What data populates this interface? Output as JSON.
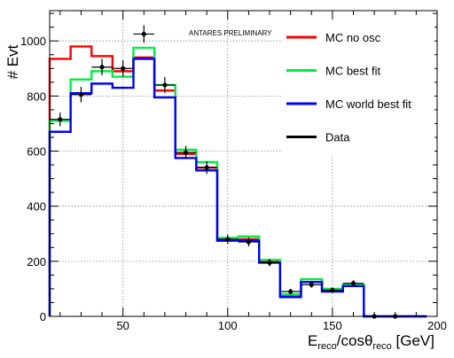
{
  "chart_data": {
    "type": "histogram",
    "annotation": "ANTARES PRELIMINARY",
    "ylabel": "# Evt",
    "xlabel": {
      "base": "E",
      "sub1": "reco",
      "mid": "/cosθ",
      "sub2": "reco",
      "unit": " [GeV]"
    },
    "xlim": [
      15,
      200
    ],
    "ylim": [
      0,
      1110
    ],
    "x_ticks": [
      50,
      100,
      150,
      200
    ],
    "y_ticks": [
      0,
      200,
      400,
      600,
      800,
      1000
    ],
    "x_tick_labels": [
      "50",
      "100",
      "150",
      "200"
    ],
    "y_tick_labels": [
      "0",
      "200",
      "400",
      "600",
      "800",
      "1000"
    ],
    "grid": true,
    "legend_position": "top-right",
    "bin_edges": [
      15,
      25,
      35,
      45,
      55,
      65,
      75,
      85,
      95,
      105,
      115,
      125,
      135,
      145,
      155,
      165,
      175,
      185,
      195
    ],
    "series": [
      {
        "name": "MC no osc",
        "color": "#ff0000",
        "values": [
          935,
          980,
          945,
          890,
          940,
          820,
          590,
          540,
          275,
          280,
          200,
          75,
          125,
          95,
          110,
          0,
          0,
          0
        ]
      },
      {
        "name": "MC best fit",
        "color": "#00ee44",
        "values": [
          710,
          860,
          890,
          870,
          975,
          840,
          605,
          560,
          285,
          290,
          205,
          80,
          135,
          100,
          115,
          0,
          0,
          0
        ]
      },
      {
        "name": "MC world best fit",
        "color": "#0000ff",
        "values": [
          670,
          810,
          845,
          830,
          935,
          795,
          575,
          530,
          275,
          275,
          195,
          70,
          125,
          90,
          110,
          0,
          0,
          0
        ]
      }
    ],
    "data_points": {
      "name": "Data",
      "color": "#000000",
      "x": [
        20,
        30,
        40,
        50,
        60,
        70,
        80,
        90,
        100,
        110,
        120,
        130,
        140,
        150,
        160,
        170,
        180
      ],
      "y": [
        715,
        805,
        905,
        900,
        1025,
        840,
        595,
        540,
        280,
        270,
        195,
        90,
        115,
        95,
        120,
        0,
        0
      ],
      "xerr": 5,
      "yerr": [
        25,
        28,
        30,
        30,
        32,
        29,
        24,
        23,
        17,
        16,
        14,
        10,
        11,
        10,
        11,
        0,
        0
      ]
    }
  }
}
